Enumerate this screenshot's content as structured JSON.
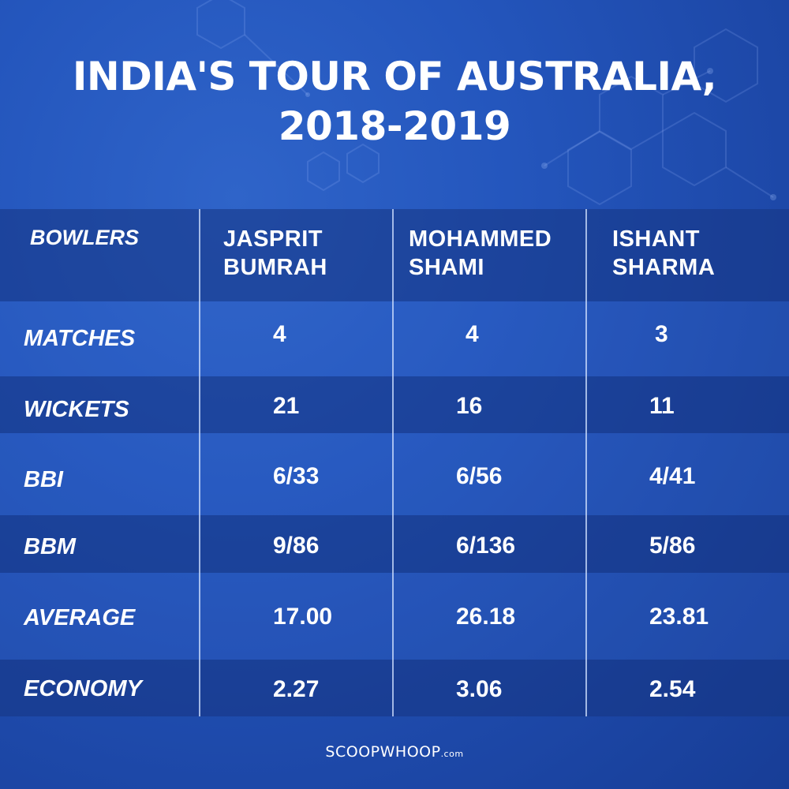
{
  "title": {
    "line1": "INDIA'S TOUR OF AUSTRALIA,",
    "line2": "2018-2019"
  },
  "table": {
    "header_label": "BOWLERS",
    "bowlers": [
      {
        "first": "JASPRIT",
        "last": "BUMRAH"
      },
      {
        "first": "MOHAMMED",
        "last": "SHAMI"
      },
      {
        "first": "ISHANT",
        "last": "SHARMA"
      }
    ],
    "rows": [
      {
        "label": "MATCHES",
        "values": [
          "4",
          "4",
          "3"
        ]
      },
      {
        "label": "WICKETS",
        "values": [
          "21",
          "16",
          "11"
        ]
      },
      {
        "label": "BBI",
        "values": [
          "6/33",
          "6/56",
          "4/41"
        ]
      },
      {
        "label": "BBM",
        "values": [
          "9/86",
          "6/136",
          "5/86"
        ]
      },
      {
        "label": "AVERAGE",
        "values": [
          "17.00",
          "26.18",
          "23.81"
        ]
      },
      {
        "label": "ECONOMY",
        "values": [
          "2.27",
          "3.06",
          "2.54"
        ]
      }
    ]
  },
  "footer": {
    "brand": "SCOOPWHOOP",
    "suffix": ".com"
  },
  "colors": {
    "background": "#2456bd",
    "text": "#ffffff"
  }
}
